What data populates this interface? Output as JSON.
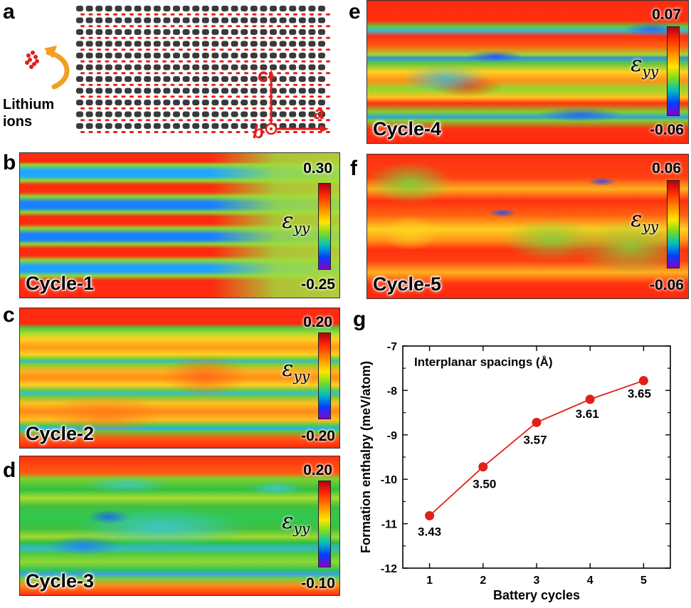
{
  "panels": {
    "a": {
      "label": "a",
      "ions_label": [
        "Lithium",
        "ions"
      ],
      "axes": [
        "c",
        "a",
        "b"
      ]
    },
    "b": {
      "label": "b",
      "cycle": "Cycle-1",
      "max": "0.30",
      "min": "-0.25"
    },
    "c": {
      "label": "c",
      "cycle": "Cycle-2",
      "max": "0.20",
      "min": "-0.20"
    },
    "d": {
      "label": "d",
      "cycle": "Cycle-3",
      "max": "0.20",
      "min": "-0.10"
    },
    "e": {
      "label": "e",
      "cycle": "Cycle-4",
      "max": "0.07",
      "min": "-0.06"
    },
    "f": {
      "label": "f",
      "cycle": "Cycle-5",
      "max": "0.06",
      "min": "-0.06"
    },
    "g": {
      "label": "g"
    }
  },
  "strain_symbol": "ε",
  "strain_subscript": "yy",
  "colors": {
    "lattice_atom": "#3a3a3a",
    "lithium": "#e0201c",
    "arrow": "#f0a020",
    "line": "#e0201c",
    "annotation": "#1e2fd0"
  },
  "chart_data": {
    "type": "line",
    "title": "Interplanar spacings (Å)",
    "xlabel": "Battery cycles",
    "ylabel": "Formation enthalpy (meV/atom)",
    "x": [
      1,
      2,
      3,
      4,
      5
    ],
    "y": [
      -10.82,
      -9.72,
      -8.72,
      -8.2,
      -7.78
    ],
    "point_labels": [
      "3.43",
      "3.50",
      "3.57",
      "3.61",
      "3.65"
    ],
    "xlim": [
      0.5,
      5.5
    ],
    "ylim": [
      -12,
      -7
    ],
    "xticks": [
      1,
      2,
      3,
      4,
      5
    ],
    "yticks": [
      -12,
      -11,
      -10,
      -9,
      -8,
      -7
    ],
    "grid": false
  }
}
